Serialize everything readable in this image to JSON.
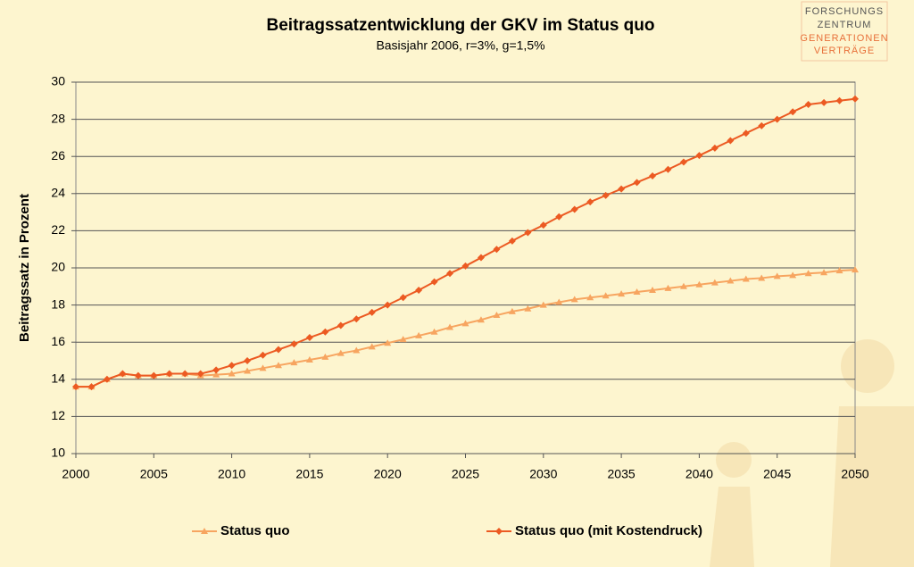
{
  "chart_data": {
    "type": "line",
    "title": "Beitragssatzentwicklung der GKV im Status quo",
    "subtitle": "Basisjahr 2006, r=3%, g=1,5%",
    "y_label": "Beitragssatz in Prozent",
    "x": [
      2000,
      2001,
      2002,
      2003,
      2004,
      2005,
      2006,
      2007,
      2008,
      2009,
      2010,
      2011,
      2012,
      2013,
      2014,
      2015,
      2016,
      2017,
      2018,
      2019,
      2020,
      2021,
      2022,
      2023,
      2024,
      2025,
      2026,
      2027,
      2028,
      2029,
      2030,
      2031,
      2032,
      2033,
      2034,
      2035,
      2036,
      2037,
      2038,
      2039,
      2040,
      2041,
      2042,
      2043,
      2044,
      2045,
      2046,
      2047,
      2048,
      2049,
      2050
    ],
    "series": [
      {
        "name": "Status quo",
        "color": "#f7a560",
        "marker": "triangle",
        "values": [
          13.6,
          13.6,
          14.0,
          14.3,
          14.2,
          14.2,
          14.3,
          14.3,
          14.2,
          14.25,
          14.3,
          14.45,
          14.6,
          14.75,
          14.9,
          15.05,
          15.2,
          15.4,
          15.55,
          15.75,
          15.95,
          16.15,
          16.35,
          16.55,
          16.8,
          17.0,
          17.2,
          17.45,
          17.65,
          17.8,
          18.0,
          18.15,
          18.3,
          18.4,
          18.5,
          18.6,
          18.7,
          18.8,
          18.9,
          19.0,
          19.1,
          19.2,
          19.3,
          19.4,
          19.45,
          19.55,
          19.6,
          19.7,
          19.75,
          19.85,
          19.9
        ]
      },
      {
        "name": "Status quo (mit Kostendruck)",
        "color": "#ec5a22",
        "marker": "diamond",
        "values": [
          13.6,
          13.6,
          14.0,
          14.3,
          14.2,
          14.2,
          14.3,
          14.3,
          14.3,
          14.5,
          14.75,
          15.0,
          15.3,
          15.6,
          15.9,
          16.25,
          16.55,
          16.9,
          17.25,
          17.6,
          18.0,
          18.4,
          18.8,
          19.25,
          19.7,
          20.1,
          20.55,
          21.0,
          21.45,
          21.9,
          22.3,
          22.75,
          23.15,
          23.55,
          23.9,
          24.25,
          24.6,
          24.95,
          25.3,
          25.7,
          26.05,
          26.45,
          26.85,
          27.25,
          27.65,
          28.0,
          28.4,
          28.8,
          28.9,
          29.0,
          29.1
        ]
      }
    ],
    "xlim": [
      2000,
      2050
    ],
    "xticks": [
      2000,
      2005,
      2010,
      2015,
      2020,
      2025,
      2030,
      2035,
      2040,
      2045,
      2050
    ],
    "ylim": [
      10,
      30
    ],
    "yticks": [
      10,
      12,
      14,
      16,
      18,
      20,
      22,
      24,
      26,
      28,
      30
    ],
    "grid": true,
    "legend": "bottom"
  },
  "logo": [
    "FORSCHUNGS",
    "ZENTRUM",
    "GENERATIONEN",
    "VERTRÄGE"
  ]
}
